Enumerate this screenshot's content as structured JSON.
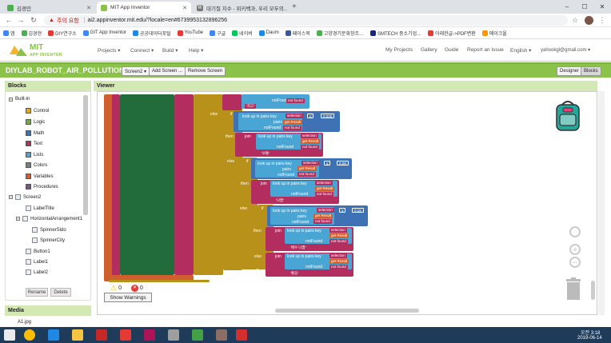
{
  "browser": {
    "tabs": [
      {
        "label": "김경민",
        "active": false,
        "color": "#4caf50"
      },
      {
        "label": "MIT App Inventor",
        "active": true,
        "color": "#8bc34a"
      },
      {
        "label": "대기질 지수 - 위키백과, 우리 모두의…",
        "active": false,
        "color": "#777777"
      }
    ],
    "security_label": "주의 요함",
    "url": "ai2.appinventor.mit.edu/?locale=en#6739953132896256",
    "bookmarks": [
      {
        "label": "앱",
        "color": "#4285f4"
      },
      {
        "label": "김경현",
        "color": "#4caf50"
      },
      {
        "label": "DIY연구소",
        "color": "#e53935"
      },
      {
        "label": "GIT App Inventor",
        "color": "#4285f4"
      },
      {
        "label": "공공데이터포털",
        "color": "#1e88e5"
      },
      {
        "label": "YouTube",
        "color": "#e53935"
      },
      {
        "label": "구글",
        "color": "#4285f4"
      },
      {
        "label": "네이버",
        "color": "#03c75a"
      },
      {
        "label": "Daum",
        "color": "#1e88e5"
      },
      {
        "label": "페이스북",
        "color": "#3b5998"
      },
      {
        "label": "고양경기문화창조…",
        "color": "#4caf50"
      },
      {
        "label": "SMTECH 중소기업…",
        "color": "#1a237e"
      },
      {
        "label": "아래한글->PDF변환",
        "color": "#e53935"
      },
      {
        "label": "메이크올",
        "color": "#ff9800"
      }
    ]
  },
  "app": {
    "logo_line1": "MIT",
    "logo_line2": "APP INVENTOR",
    "menu": [
      "Projects ▾",
      "Connect ▾",
      "Build ▾",
      "Help ▾"
    ],
    "right_menu": [
      "My Projects",
      "Gallery",
      "Guide",
      "Report an Issue",
      "English ▾",
      "yahookgl@gmail.com ▾"
    ],
    "project_title": "DIYLAB_ROBOT_AIR_POLLUTION1",
    "screen_select": "Screen2 ▾",
    "add_screen": "Add Screen ...",
    "remove_screen": "Remove Screen",
    "designer": "Designer",
    "blocks": "Blocks"
  },
  "blocks_panel": {
    "title": "Blocks",
    "builtin": "Built-in",
    "categories": [
      {
        "label": "Control",
        "color": "#e1a91a"
      },
      {
        "label": "Logic",
        "color": "#77ab41"
      },
      {
        "label": "Math",
        "color": "#3f71b5"
      },
      {
        "label": "Text",
        "color": "#b32d5e"
      },
      {
        "label": "Lists",
        "color": "#49a6d4"
      },
      {
        "label": "Colors",
        "color": "#7d7d7d"
      },
      {
        "label": "Variables",
        "color": "#d05f2d"
      },
      {
        "label": "Procedures",
        "color": "#7c5385"
      }
    ],
    "screen": "Screen2",
    "components": [
      "LabelTitle",
      "HorizontalArrangement1",
      "SpinnerSido",
      "SpinnerCity",
      "Button1",
      "Label1",
      "Label2"
    ],
    "rename": "Rename",
    "delete": "Delete",
    "media_title": "Media",
    "media_file": "A1.jpg"
  },
  "viewer": {
    "title": "Viewer",
    "warnings_count": "0",
    "errors_count": "0",
    "show_warnings": "Show Warnings",
    "block_text": {
      "else": "else",
      "if": "if",
      "then": "then",
      "join": "join",
      "lookup": "look up in pairs  key",
      "pairs": "pairs",
      "notfound": "notFound",
      "selection": "selection",
      "get_result": "get  Result",
      "not_found": "not found",
      "notfound2": "notFound",
      "op_lte": "≤",
      "op_gte": "≥",
      "num1": "0.035",
      "num2": "0.08",
      "num3": "0.15",
      "txt1": "'보통'",
      "txt2": "'나쁨'",
      "txt3": "'매우 나쁨'",
      "txt4": "'좋음'",
      "txt5": "'최고'"
    }
  },
  "taskbar": {
    "time": "오전 3:18",
    "date": "2019-06-14"
  }
}
